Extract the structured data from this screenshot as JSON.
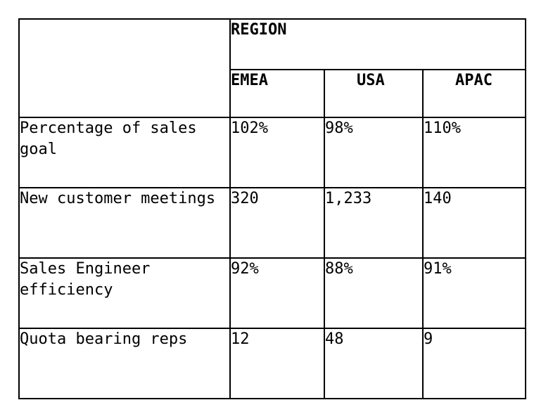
{
  "table": {
    "group_header": "REGION",
    "columns": [
      "EMEA",
      "USA",
      "APAC"
    ],
    "rows": [
      {
        "label": "Percentage of sales goal",
        "values": [
          "102%",
          "98%",
          "110%"
        ]
      },
      {
        "label": "New customer meetings",
        "values": [
          "320",
          "1,233",
          "140"
        ]
      },
      {
        "label": "Sales Engineer efficiency",
        "values": [
          "92%",
          "88%",
          "91%"
        ]
      },
      {
        "label": "Quota bearing reps",
        "values": [
          "12",
          "48",
          "9"
        ]
      }
    ]
  }
}
